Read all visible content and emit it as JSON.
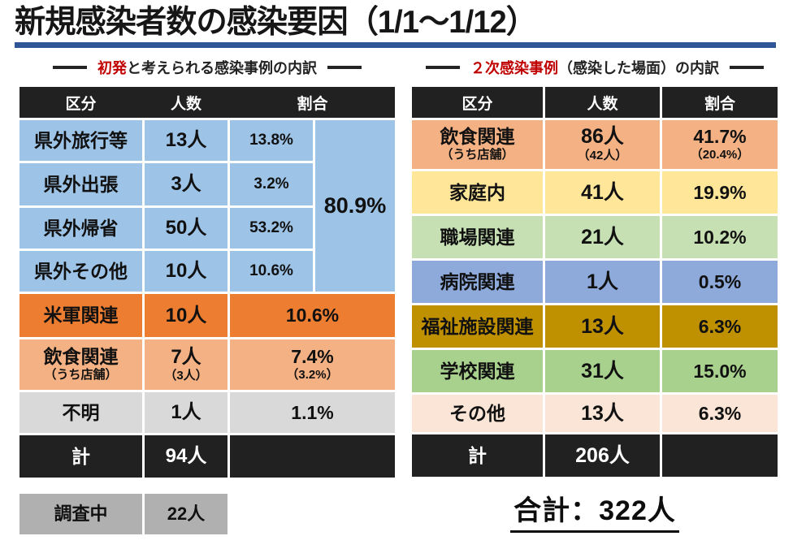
{
  "title": "新規感染者数の感染要因（1/1～1/12）",
  "colors": {
    "accent_rule": "#2F5597",
    "heading_red": "#C00000",
    "header_bg": "#212121",
    "total_bg": "#212121",
    "investigating_bg": "#B0B0B0"
  },
  "left": {
    "heading": {
      "red": "初発",
      "rest": "と考えられる感染事例の内訳"
    },
    "headers": {
      "category": "区分",
      "count": "人数",
      "ratio": "割合"
    },
    "rows": [
      {
        "label": "県外旅行等",
        "count": "13人",
        "ratio": "13.8%",
        "bg": "#9DC3E6"
      },
      {
        "label": "県外出張",
        "count": "3人",
        "ratio": "3.2%",
        "bg": "#9DC3E6"
      },
      {
        "label": "県外帰省",
        "count": "50人",
        "ratio": "53.2%",
        "bg": "#9DC3E6"
      },
      {
        "label": "県外その他",
        "count": "10人",
        "ratio": "10.6%",
        "bg": "#9DC3E6"
      },
      {
        "label": "米軍関連",
        "count": "10人",
        "ratio": "10.6%",
        "bg": "#ED7D31"
      },
      {
        "label": "飲食関連",
        "label_sub": "（うち店舗）",
        "count": "7人",
        "count_sub": "（3人）",
        "ratio": "7.4%",
        "ratio_sub": "（3.2%）",
        "bg": "#F4B183"
      },
      {
        "label": "不明",
        "count": "1人",
        "ratio": "1.1%",
        "bg": "#D9D9D9"
      }
    ],
    "merged_ratio": {
      "value": "80.9%",
      "bg": "#9DC3E6"
    },
    "total": {
      "label": "計",
      "count": "94人"
    },
    "investigating": {
      "label": "調査中",
      "count": "22人"
    }
  },
  "right": {
    "heading": {
      "red": "２次感染事例",
      "rest": "（感染した場面）の内訳"
    },
    "headers": {
      "category": "区分",
      "count": "人数",
      "ratio": "割合"
    },
    "rows": [
      {
        "label": "飲食関連",
        "label_sub": "（うち店舗）",
        "count": "86人",
        "count_sub": "（42人）",
        "ratio": "41.7%",
        "ratio_sub": "（20.4%）",
        "bg": "#F4B183"
      },
      {
        "label": "家庭内",
        "count": "41人",
        "ratio": "19.9%",
        "bg": "#FFE699"
      },
      {
        "label": "職場関連",
        "count": "21人",
        "ratio": "10.2%",
        "bg": "#C6E0B4"
      },
      {
        "label": "病院関連",
        "count": "1人",
        "ratio": "0.5%",
        "bg": "#8EAADB"
      },
      {
        "label": "福祉施設関連",
        "count": "13人",
        "ratio": "6.3%",
        "bg": "#BF9000"
      },
      {
        "label": "学校関連",
        "count": "31人",
        "ratio": "15.0%",
        "bg": "#A9D18E"
      },
      {
        "label": "その他",
        "count": "13人",
        "ratio": "6.3%",
        "bg": "#FBE5D6"
      }
    ],
    "total": {
      "label": "計",
      "count": "206人"
    },
    "grand_total": "合計：322人"
  }
}
